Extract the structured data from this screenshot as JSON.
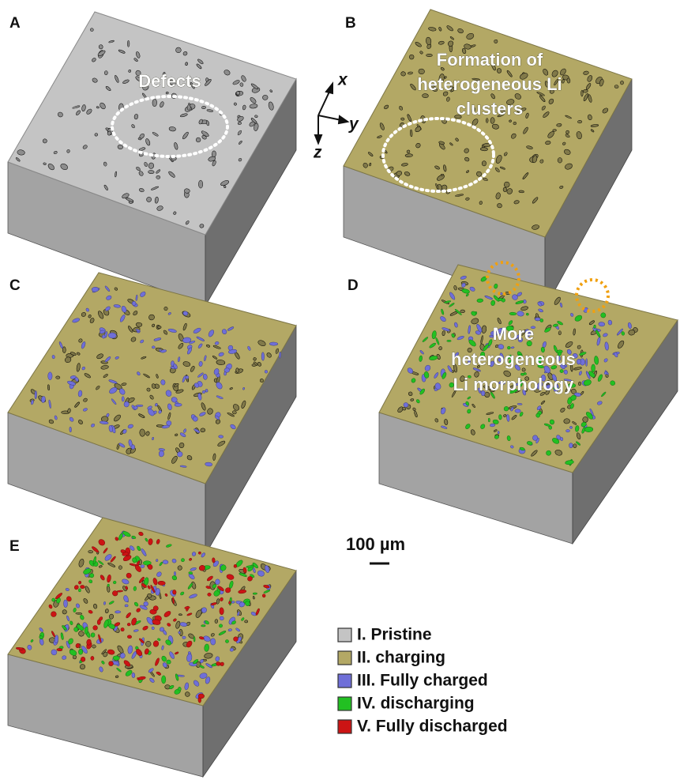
{
  "panels": [
    {
      "label": "A"
    },
    {
      "label": "B"
    },
    {
      "label": "C"
    },
    {
      "label": "D"
    },
    {
      "label": "E"
    }
  ],
  "annotations": {
    "defects": "Defects",
    "clusters": [
      "Formation of",
      "heterogeneous Li",
      "clusters"
    ],
    "morphology": [
      "More",
      "heterogeneous",
      "Li morphology"
    ]
  },
  "axes": {
    "x": "x",
    "y": "y",
    "z": "z"
  },
  "scale_bar": "100 µm",
  "legend": [
    {
      "label": "I. Pristine",
      "color": "#c4c4c4"
    },
    {
      "label": "II. charging",
      "color": "#b3a865"
    },
    {
      "label": "III. Fully charged",
      "color": "#6f6fd8"
    },
    {
      "label": "IV. discharging",
      "color": "#22c022"
    },
    {
      "label": "V. Fully discharged",
      "color": "#cc1414"
    }
  ]
}
